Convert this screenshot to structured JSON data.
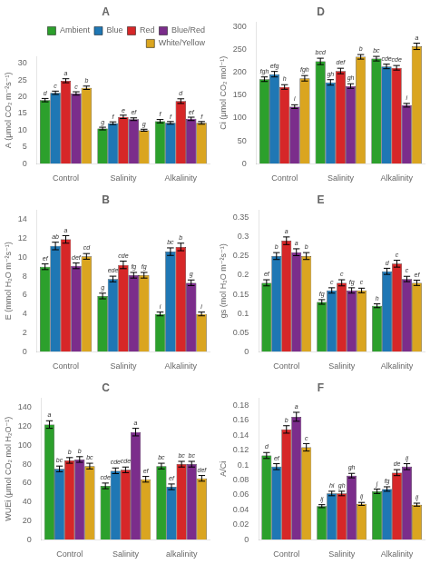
{
  "chart_data": [
    {
      "type": "bar",
      "title": "A",
      "ylabel": "A (μmol CO₂ m⁻²s⁻¹)",
      "categories": [
        "Control",
        "Salinity",
        "Alkalinity"
      ],
      "ylim": [
        0,
        32
      ],
      "yticks": [
        0,
        5,
        10,
        15,
        20,
        25,
        30
      ],
      "grid": false,
      "legend": "upper right",
      "series": [
        {
          "name": "Ambient",
          "color": "#2ca02c",
          "values": [
            19.0,
            10.5,
            12.7
          ],
          "errors": [
            0.5,
            0.4,
            0.5
          ],
          "annotations": [
            "d",
            "g",
            "f"
          ]
        },
        {
          "name": "Blue",
          "color": "#1f77b4",
          "values": [
            21.2,
            12.1,
            12.2
          ],
          "errors": [
            0.5,
            0.4,
            0.4
          ],
          "annotations": [
            "c",
            "f",
            "f"
          ]
        },
        {
          "name": "Red",
          "color": "#d62728",
          "values": [
            24.8,
            14.0,
            18.7
          ],
          "errors": [
            0.6,
            0.5,
            0.7
          ],
          "annotations": [
            "a",
            "e",
            "d"
          ]
        },
        {
          "name": "Blue/Red",
          "color": "#7b2d8b",
          "values": [
            21.0,
            13.3,
            13.4
          ],
          "errors": [
            0.5,
            0.4,
            0.5
          ],
          "annotations": [
            "c",
            "ef",
            "ef"
          ]
        },
        {
          "name": "White/Yellow",
          "color": "#daa520",
          "values": [
            22.7,
            10.0,
            12.2
          ],
          "errors": [
            0.5,
            0.3,
            0.4
          ],
          "annotations": [
            "b",
            "g",
            "f"
          ]
        }
      ]
    },
    {
      "type": "bar",
      "title": "B",
      "ylabel": "E (mmol H₂O m⁻²s⁻¹)",
      "categories": [
        "Control",
        "Salinity",
        "Alkalinity"
      ],
      "ylim": [
        0,
        15
      ],
      "yticks": [
        0,
        2,
        4,
        6,
        8,
        10,
        12,
        14
      ],
      "grid": false,
      "legend": false,
      "series": [
        {
          "name": "Ambient",
          "color": "#2ca02c",
          "values": [
            9.0,
            5.9,
            4.0
          ],
          "errors": [
            0.3,
            0.3,
            0.2
          ],
          "annotations": [
            "ef",
            "g",
            "i"
          ]
        },
        {
          "name": "Blue",
          "color": "#1f77b4",
          "values": [
            11.2,
            7.7,
            10.6
          ],
          "errors": [
            0.4,
            0.3,
            0.4
          ],
          "annotations": [
            "ab",
            "ede",
            "bc"
          ]
        },
        {
          "name": "Red",
          "color": "#d62728",
          "values": [
            11.9,
            9.2,
            11.1
          ],
          "errors": [
            0.4,
            0.4,
            0.4
          ],
          "annotations": [
            "a",
            "cde",
            "b"
          ]
        },
        {
          "name": "Blue/Red",
          "color": "#7b2d8b",
          "values": [
            9.1,
            8.1,
            7.3
          ],
          "errors": [
            0.3,
            0.3,
            0.3
          ],
          "annotations": [
            "def",
            "fg",
            "g"
          ]
        },
        {
          "name": "White/Yellow",
          "color": "#daa520",
          "values": [
            10.1,
            8.1,
            4.0
          ],
          "errors": [
            0.3,
            0.3,
            0.2
          ],
          "annotations": [
            "cd",
            "fg",
            "i"
          ]
        }
      ]
    },
    {
      "type": "bar",
      "title": "C",
      "ylabel": "WUEi (μmol CO₂ mol H₂O⁻¹)",
      "categories": [
        "Control",
        "Salinity",
        "alkalinity"
      ],
      "ylim": [
        0,
        150
      ],
      "yticks": [
        0,
        20,
        40,
        60,
        80,
        100,
        120,
        140
      ],
      "grid": false,
      "legend": false,
      "series": [
        {
          "name": "Ambient",
          "color": "#2ca02c",
          "values": [
            122,
            57,
            78
          ],
          "errors": [
            4,
            3,
            3
          ],
          "annotations": [
            "a",
            "cde",
            "bc"
          ]
        },
        {
          "name": "Blue",
          "color": "#1f77b4",
          "values": [
            75,
            73,
            56
          ],
          "errors": [
            3,
            3,
            3
          ],
          "annotations": [
            "bc",
            "cde",
            "ef"
          ]
        },
        {
          "name": "Red",
          "color": "#d62728",
          "values": [
            84,
            74,
            80
          ],
          "errors": [
            3,
            3,
            3
          ],
          "annotations": [
            "b",
            "cde",
            "bc"
          ]
        },
        {
          "name": "Blue/Red",
          "color": "#7b2d8b",
          "values": [
            85,
            114,
            80
          ],
          "errors": [
            3,
            4,
            3
          ],
          "annotations": [
            "b",
            "a",
            "bc"
          ]
        },
        {
          "name": "White/Yellow",
          "color": "#daa520",
          "values": [
            78,
            64,
            65
          ],
          "errors": [
            3,
            3,
            3
          ],
          "annotations": [
            "bc",
            "ef",
            "def"
          ]
        }
      ]
    },
    {
      "type": "bar",
      "title": "D",
      "ylabel": "Ci (μmol CO₂ mol⁻¹)",
      "categories": [
        "Control",
        "Salinity",
        "Alkalinity"
      ],
      "ylim": [
        0,
        310
      ],
      "yticks": [
        0,
        50,
        100,
        150,
        200,
        250,
        300
      ],
      "grid": false,
      "legend": false,
      "series": [
        {
          "name": "Ambient",
          "color": "#2ca02c",
          "values": [
            185,
            224,
            230
          ],
          "errors": [
            5,
            7,
            5
          ],
          "annotations": [
            "fgh",
            "bcd",
            "bc"
          ]
        },
        {
          "name": "Blue",
          "color": "#1f77b4",
          "values": [
            196,
            178,
            213
          ],
          "errors": [
            6,
            6,
            5
          ],
          "annotations": [
            "efg",
            "gh",
            "cde"
          ]
        },
        {
          "name": "Red",
          "color": "#d62728",
          "values": [
            168,
            203,
            210
          ],
          "errors": [
            5,
            6,
            5
          ],
          "annotations": [
            "h",
            "def",
            "cde"
          ]
        },
        {
          "name": "Blue/Red",
          "color": "#7b2d8b",
          "values": [
            125,
            170,
            128
          ],
          "errors": [
            4,
            5,
            4
          ],
          "annotations": [
            "i",
            "gh",
            "i"
          ]
        },
        {
          "name": "White/Yellow",
          "color": "#daa520",
          "values": [
            187,
            234,
            257
          ],
          "errors": [
            6,
            5,
            7
          ],
          "annotations": [
            "fgh",
            "b",
            "a"
          ]
        }
      ]
    },
    {
      "type": "bar",
      "title": "E",
      "ylabel": "gs (mol H₂O m⁻²s⁻¹)",
      "categories": [
        "Control",
        "Salinity",
        "Alkalinity"
      ],
      "ylim": [
        0,
        0.37
      ],
      "yticks": [
        0,
        0.05,
        0.1,
        0.15,
        0.2,
        0.25,
        0.3,
        0.35
      ],
      "grid": false,
      "legend": false,
      "series": [
        {
          "name": "Ambient",
          "color": "#2ca02c",
          "values": [
            0.18,
            0.13,
            0.12
          ],
          "errors": [
            0.008,
            0.006,
            0.005
          ],
          "annotations": [
            "ef",
            "fg",
            "h"
          ]
        },
        {
          "name": "Blue",
          "color": "#1f77b4",
          "values": [
            0.25,
            0.16,
            0.21
          ],
          "errors": [
            0.009,
            0.007,
            0.008
          ],
          "annotations": [
            "b",
            "c",
            "d"
          ]
        },
        {
          "name": "Red",
          "color": "#d62728",
          "values": [
            0.29,
            0.18,
            0.23
          ],
          "errors": [
            0.01,
            0.008,
            0.009
          ],
          "annotations": [
            "a",
            "c",
            "c"
          ]
        },
        {
          "name": "Blue/Red",
          "color": "#7b2d8b",
          "values": [
            0.26,
            0.16,
            0.19
          ],
          "errors": [
            0.009,
            0.007,
            0.007
          ],
          "annotations": [
            "a",
            "fg",
            "c"
          ]
        },
        {
          "name": "White/Yellow",
          "color": "#daa520",
          "values": [
            0.25,
            0.16,
            0.18
          ],
          "errors": [
            0.009,
            0.006,
            0.007
          ],
          "annotations": [
            "b",
            "c",
            "ef"
          ]
        }
      ]
    },
    {
      "type": "bar",
      "title": "F",
      "ylabel": "A/Ci",
      "categories": [
        "Control",
        "Salinity",
        "Alkalinity"
      ],
      "ylim": [
        0,
        0.19
      ],
      "yticks": [
        0,
        0.02,
        0.04,
        0.06,
        0.08,
        0.1,
        0.12,
        0.14,
        0.16,
        0.18
      ],
      "grid": false,
      "legend": false,
      "series": [
        {
          "name": "Ambient",
          "color": "#2ca02c",
          "values": [
            0.113,
            0.045,
            0.065
          ],
          "errors": [
            0.004,
            0.002,
            0.003
          ],
          "annotations": [
            "d",
            "ij",
            "j"
          ]
        },
        {
          "name": "Blue",
          "color": "#1f77b4",
          "values": [
            0.098,
            0.062,
            0.068
          ],
          "errors": [
            0.004,
            0.003,
            0.003
          ],
          "annotations": [
            "ef",
            "hi",
            "fg"
          ]
        },
        {
          "name": "Red",
          "color": "#d62728",
          "values": [
            0.148,
            0.062,
            0.09
          ],
          "errors": [
            0.005,
            0.003,
            0.004
          ],
          "annotations": [
            "b",
            "gh",
            "de"
          ]
        },
        {
          "name": "Blue/Red",
          "color": "#7b2d8b",
          "values": [
            0.165,
            0.086,
            0.098
          ],
          "errors": [
            0.006,
            0.003,
            0.004
          ],
          "annotations": [
            "a",
            "gh",
            "ij"
          ]
        },
        {
          "name": "White/Yellow",
          "color": "#daa520",
          "values": [
            0.124,
            0.048,
            0.047
          ],
          "errors": [
            0.005,
            0.002,
            0.002
          ],
          "annotations": [
            "c",
            "ij",
            "ij"
          ]
        }
      ]
    }
  ]
}
